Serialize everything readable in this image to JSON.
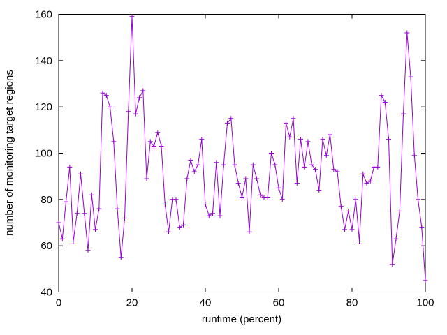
{
  "chart_data": {
    "type": "line",
    "title": "",
    "xlabel": "runtime (percent)",
    "ylabel": "number of monitoring target regions",
    "xlim": [
      0,
      100
    ],
    "ylim": [
      40,
      160
    ],
    "xticks": [
      0,
      20,
      40,
      60,
      80,
      100
    ],
    "yticks": [
      40,
      60,
      80,
      100,
      120,
      140,
      160
    ],
    "grid": false,
    "legend": "none",
    "line_color": "#9400D3",
    "marker": "plus",
    "axis_color": "#000000",
    "x": [
      0,
      1,
      2,
      3,
      4,
      5,
      6,
      7,
      8,
      9,
      10,
      11,
      12,
      13,
      14,
      15,
      16,
      17,
      18,
      19,
      20,
      21,
      22,
      23,
      24,
      25,
      26,
      27,
      28,
      29,
      30,
      31,
      32,
      33,
      34,
      35,
      36,
      37,
      38,
      39,
      40,
      41,
      42,
      43,
      44,
      45,
      46,
      47,
      48,
      49,
      50,
      51,
      52,
      53,
      54,
      55,
      56,
      57,
      58,
      59,
      60,
      61,
      62,
      63,
      64,
      65,
      66,
      67,
      68,
      69,
      70,
      71,
      72,
      73,
      74,
      75,
      76,
      77,
      78,
      79,
      80,
      81,
      82,
      83,
      84,
      85,
      86,
      87,
      88,
      89,
      90,
      91,
      92,
      93,
      94,
      95,
      96,
      97,
      98,
      99,
      100
    ],
    "y": [
      70,
      63,
      79,
      94,
      62,
      74,
      91,
      74,
      58,
      82,
      67,
      76,
      126,
      125,
      120,
      105,
      76,
      55,
      72,
      118,
      159,
      117,
      124,
      127,
      89,
      105,
      103,
      109,
      103,
      78,
      66,
      80,
      80,
      68,
      69,
      89,
      97,
      92,
      95,
      106,
      78,
      73,
      74,
      96,
      73,
      95,
      113,
      115,
      95,
      87,
      81,
      89,
      66,
      95,
      89,
      82,
      81,
      81,
      100,
      95,
      85,
      80,
      113,
      107,
      115,
      87,
      106,
      94,
      105,
      95,
      93,
      84,
      106,
      99,
      108,
      93,
      92,
      77,
      67,
      75,
      67,
      80,
      62,
      91,
      87,
      88,
      94,
      94,
      125,
      122,
      106,
      52,
      63,
      75,
      117,
      152,
      133,
      99,
      80,
      68,
      45
    ]
  }
}
